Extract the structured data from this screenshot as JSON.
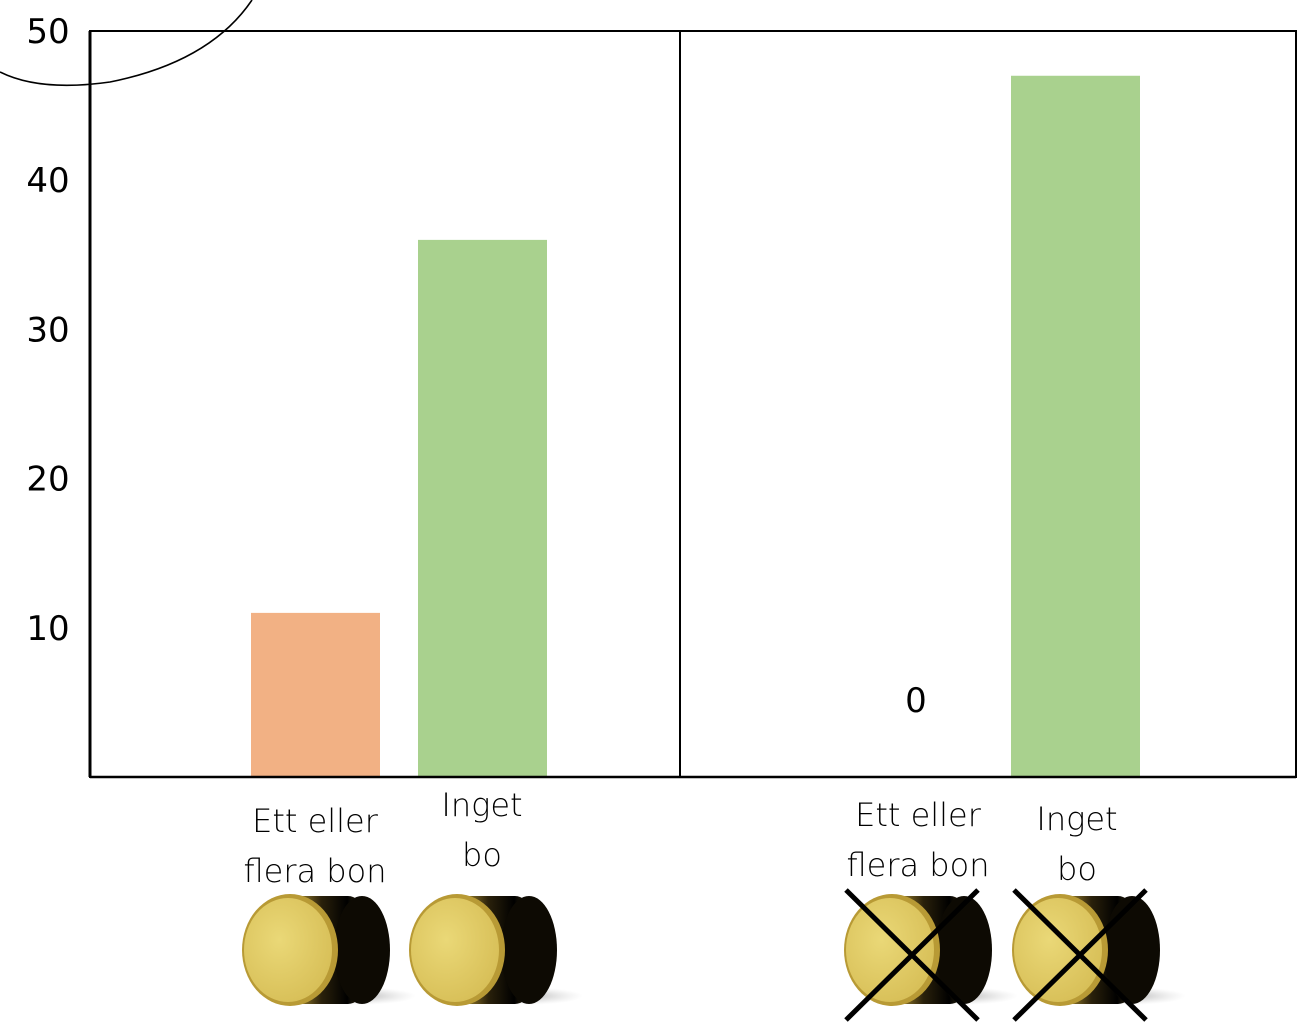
{
  "chart_data": {
    "type": "bar",
    "title": "",
    "xlabel": "",
    "ylabel": "",
    "ylim": [
      0,
      50
    ],
    "yticks": [
      10,
      20,
      30,
      40,
      50
    ],
    "grid": false,
    "colors": {
      "Ett eller flera bon": "#f2b184",
      "Inget bo": "#a9d18e",
      "frame": "#000000",
      "cylinder_face": "#e3cf6a",
      "cylinder_side": "#1a1407",
      "cross": "#000000"
    },
    "panels": [
      {
        "categories": [
          {
            "lines": [
              "Ett eller",
              "flera bon"
            ],
            "value": 11,
            "key": "Ett eller flera bon",
            "crossed_out": false
          },
          {
            "lines": [
              "Inget",
              "bo"
            ],
            "value": 36,
            "key": "Inget bo",
            "crossed_out": false
          }
        ]
      },
      {
        "zero_label": "0",
        "categories": [
          {
            "lines": [
              "Ett eller",
              "flera bon"
            ],
            "value": 0,
            "key": "Ett eller flera bon",
            "crossed_out": true
          },
          {
            "lines": [
              "Inget",
              "bo"
            ],
            "value": 47,
            "key": "Inget bo",
            "crossed_out": true
          }
        ]
      }
    ]
  },
  "icons": {
    "cylinder": "cylinder-icon",
    "cross": "cross-icon",
    "highlight": "highlight-circle-icon"
  }
}
